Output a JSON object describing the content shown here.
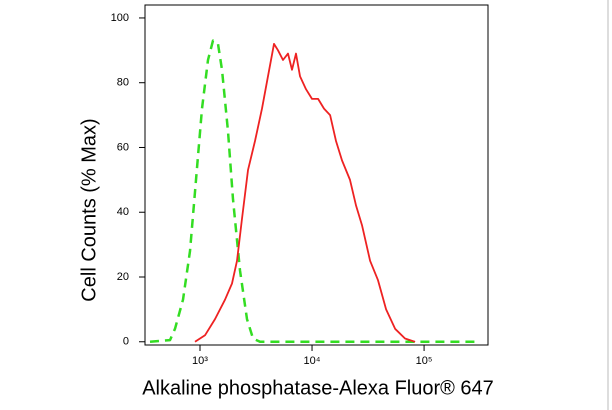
{
  "chart_data": {
    "type": "line",
    "x_label": "Alkaline phosphatase-Alexa Fluor® 647",
    "y_label": "Cell Counts (% Max)",
    "xscale": "log",
    "xlim": [
      323,
      372000
    ],
    "ylim": [
      -1,
      104
    ],
    "xticks": [
      {
        "value": 1000,
        "label": "10³"
      },
      {
        "value": 10000,
        "label": "10⁴"
      },
      {
        "value": 100000,
        "label": "10⁵"
      }
    ],
    "yticks": [
      0,
      20,
      40,
      60,
      80,
      100
    ],
    "series": [
      {
        "color": "#33dd22",
        "linestyle": "dashed",
        "x": [
          358,
          540,
          598,
          705,
          815,
          921,
          1042,
          1179,
          1306,
          1448,
          1572,
          1778,
          1972,
          2277,
          2630,
          2972,
          3434,
          300000
        ],
        "values": [
          0,
          0.5,
          4,
          13,
          28,
          50,
          72,
          87,
          93,
          92,
          84,
          65,
          44,
          22,
          7,
          1,
          0,
          0
        ]
      },
      {
        "color": "#ee2222",
        "linestyle": "solid",
        "x": [
          902,
          1108,
          1361,
          1671,
          1930,
          2138,
          2371,
          2683,
          3099,
          3580,
          4047,
          4581,
          4970,
          5508,
          6105,
          6627,
          7194,
          7814,
          8837,
          10000,
          11320,
          12800,
          14490,
          16370,
          18530,
          21840,
          24710,
          27940,
          32950,
          38820,
          45810,
          55080,
          67610,
          83180
        ],
        "values": [
          0,
          2,
          7,
          13,
          18,
          25,
          38,
          53,
          62,
          72,
          82,
          92,
          90,
          87,
          89,
          84,
          89,
          82,
          78,
          75,
          75,
          72,
          70,
          62,
          56,
          50,
          42,
          36,
          25,
          19,
          10,
          4,
          1,
          0
        ]
      }
    ]
  }
}
